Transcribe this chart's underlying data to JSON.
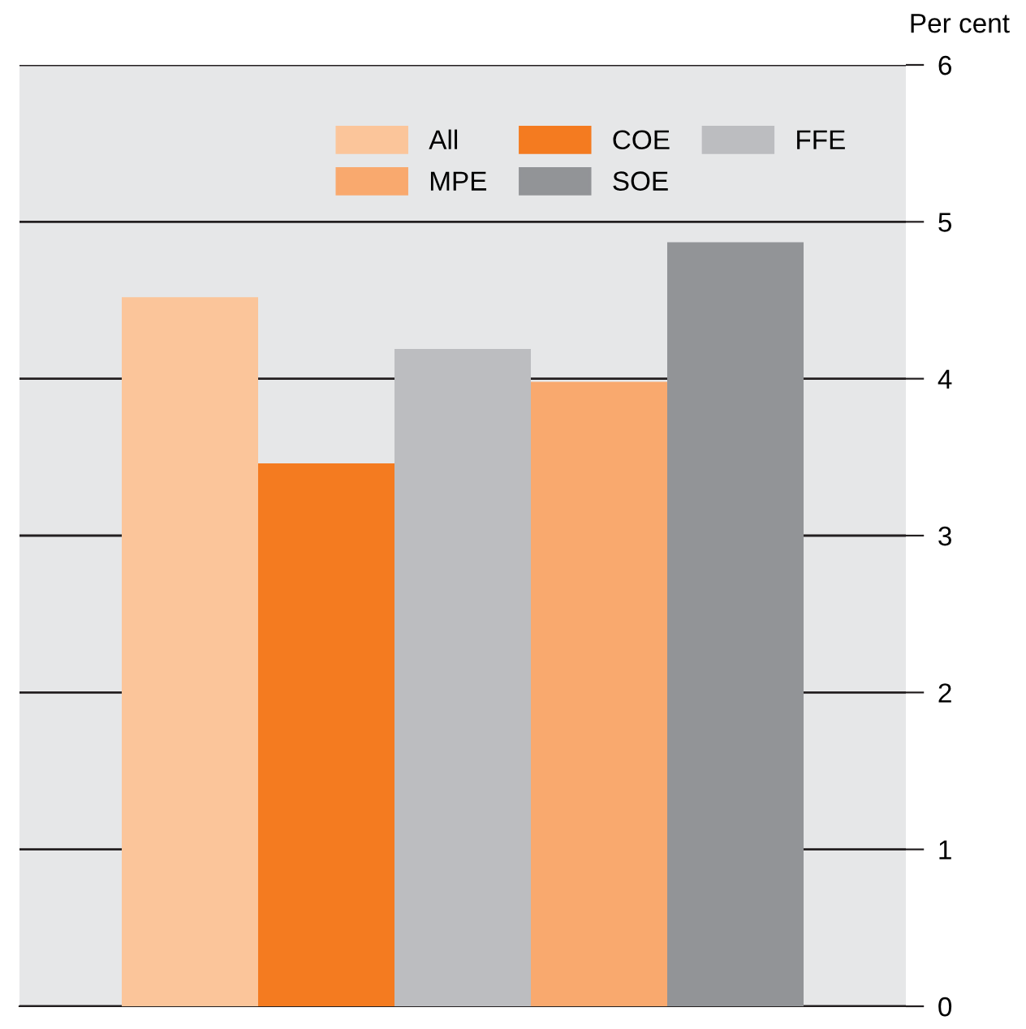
{
  "chart_data": {
    "type": "bar",
    "ylabel": "Per cent",
    "categories": [
      null
    ],
    "series": [
      {
        "name": "All",
        "color": "#fbc59a",
        "values": [
          4.52
        ]
      },
      {
        "name": "COE",
        "color": "#f47b20",
        "values": [
          3.46
        ]
      },
      {
        "name": "FFE",
        "color": "#bcbdc0",
        "values": [
          4.19
        ]
      },
      {
        "name": "MPE",
        "color": "#f9a96e",
        "values": [
          3.98
        ]
      },
      {
        "name": "SOE",
        "color": "#929497",
        "values": [
          4.87
        ]
      }
    ],
    "ylim": [
      0,
      6
    ],
    "yticks": [
      0,
      1,
      2,
      3,
      4,
      5,
      6
    ],
    "grid": "y",
    "legend": "top right",
    "tick_labels": "y"
  }
}
